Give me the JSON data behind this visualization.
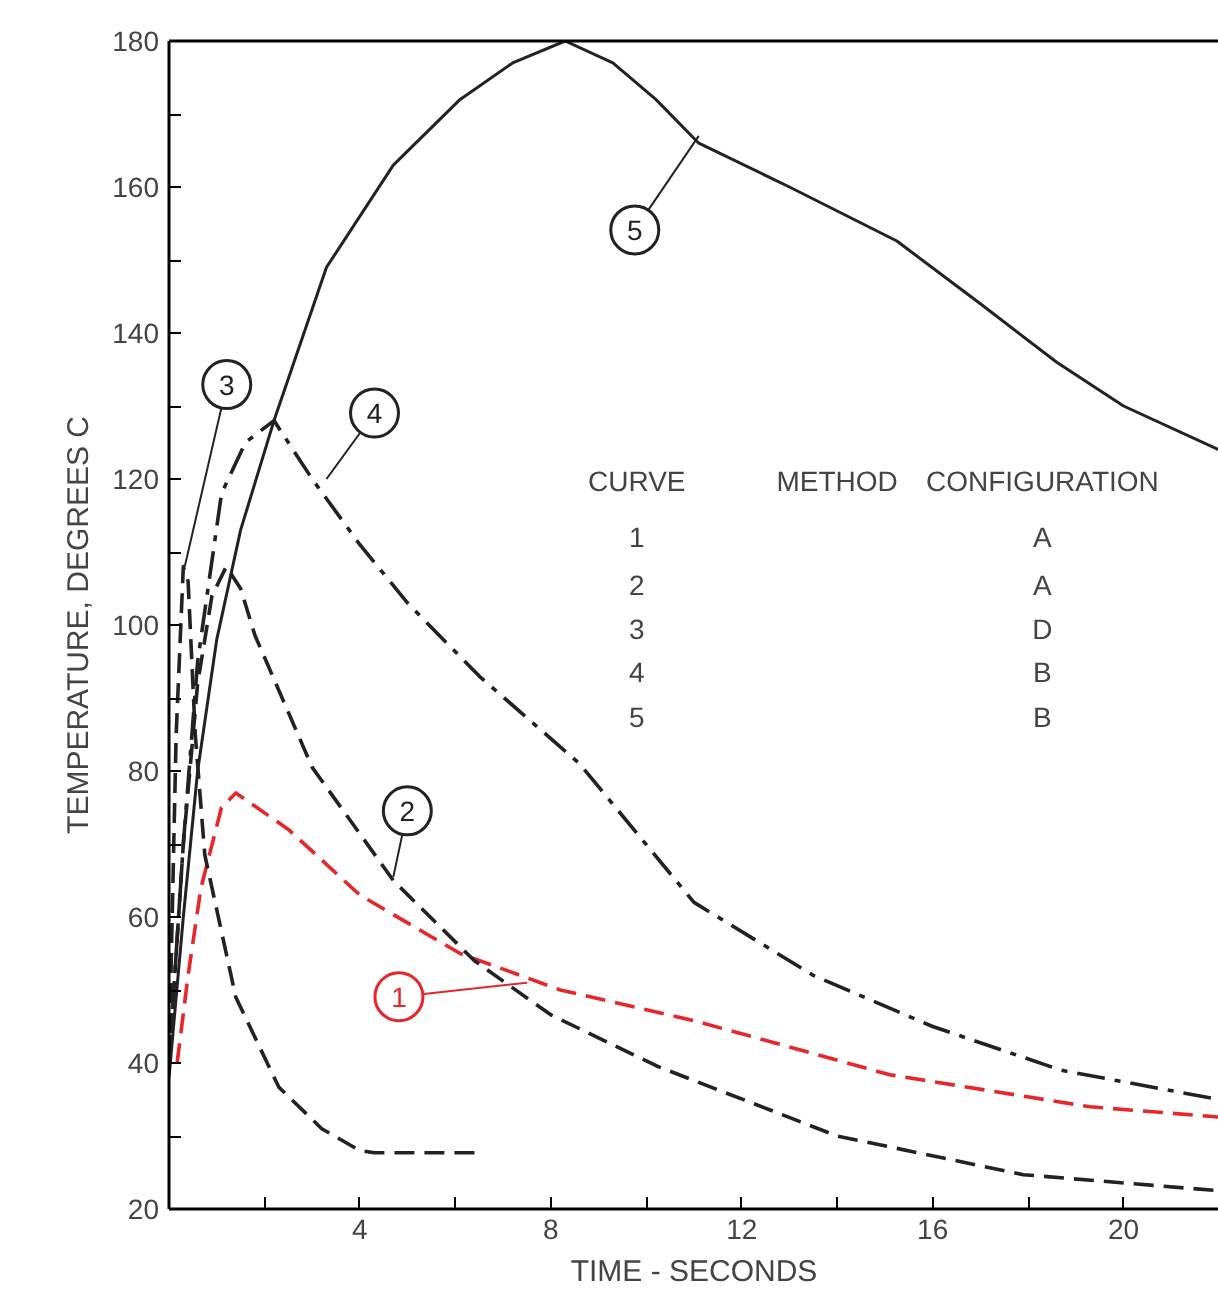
{
  "chart_data": {
    "type": "line",
    "xlabel": "TIME - SECONDS",
    "ylabel": "TEMPERATURE, DEGREES C",
    "xlim": [
      0,
      22
    ],
    "ylim": [
      20,
      180
    ],
    "xticks": [
      {
        "value": 2,
        "label": null
      },
      4,
      {
        "value": 6,
        "label": null
      },
      8,
      {
        "value": 10,
        "label": null
      },
      12,
      {
        "value": 14,
        "label": null
      },
      16,
      {
        "value": 18,
        "label": null
      },
      20
    ],
    "yticks": [
      20,
      {
        "value": 30,
        "label": null
      },
      40,
      {
        "value": 50,
        "label": null
      },
      60,
      {
        "value": 70,
        "label": null
      },
      80,
      {
        "value": 90,
        "label": null
      },
      100,
      {
        "value": 110,
        "label": null
      },
      120,
      {
        "value": 130,
        "label": null
      },
      140,
      {
        "value": 150,
        "label": null
      },
      160,
      {
        "value": 170,
        "label": null
      },
      180
    ],
    "grid": false,
    "series": [
      {
        "color": "#e8262a",
        "line_style": "dashed",
        "x": [
          0.17,
          0.4,
          0.67,
          1.1,
          1.4,
          2.5,
          4,
          6.1,
          8.2,
          11,
          15.1,
          19.3,
          22
        ],
        "values": [
          40,
          52,
          64,
          75,
          77,
          72,
          63,
          55,
          50,
          45.8,
          38.4,
          34,
          32.6
        ]
      },
      {
        "color": "#222222",
        "line_style": "dashed",
        "x": [
          0,
          0.3,
          0.6,
          0.9,
          1.2,
          1.5,
          1.8,
          3.0,
          4.7,
          6.4,
          8,
          10.25,
          14,
          17.9,
          22
        ],
        "values": [
          40,
          70,
          92,
          104,
          108,
          105,
          98.6,
          80.5,
          65,
          54,
          46.6,
          39.5,
          30,
          24.7,
          22.5
        ]
      },
      {
        "color": "#222222",
        "line_style": "dashed",
        "x": [
          0,
          0.15,
          0.3,
          0.4,
          0.55,
          0.75,
          1.4,
          2.3,
          3.2,
          4,
          4.3,
          6.5
        ],
        "values": [
          40,
          85,
          108,
          106,
          85,
          68.5,
          49,
          36.7,
          31,
          28,
          27.7,
          27.7
        ]
      },
      {
        "color": "#222222",
        "line_style": "dashdot",
        "x": [
          0,
          0.3,
          0.6,
          1.1,
          1.6,
          2.2,
          3,
          4,
          5,
          6.5,
          8.6,
          11,
          13.5,
          16,
          18.7,
          22
        ],
        "values": [
          40,
          70,
          95,
          118,
          125,
          128,
          120,
          111,
          103,
          93,
          81,
          62,
          52,
          45,
          39,
          35
        ]
      },
      {
        "color": "#222222",
        "line_style": "solid",
        "x": [
          0,
          0.3,
          0.6,
          1,
          1.5,
          2.2,
          3.3,
          4.7,
          6.1,
          7.2,
          8.3,
          9.3,
          10.2,
          11.1,
          13,
          15.25,
          17,
          18.6,
          20,
          22
        ],
        "values": [
          38,
          60,
          80,
          98,
          113,
          128,
          149,
          163,
          172,
          177,
          180,
          177,
          172,
          166,
          160,
          152.6,
          144,
          136,
          130,
          124
        ]
      }
    ],
    "annotations": [
      {
        "text": "1",
        "x": 7.5,
        "y": 51
      },
      {
        "text": "2",
        "x": 4.7,
        "y": 65.5
      },
      {
        "text": "3",
        "x": 0.33,
        "y": 108
      },
      {
        "text": "4",
        "x": 3.3,
        "y": 120
      },
      {
        "text": "5",
        "x": 11.1,
        "y": 167
      },
      "CURVE",
      "METHOD",
      "CONFIGURATION",
      "1",
      "A",
      "2",
      "A",
      "3",
      "D",
      "4",
      "B",
      "5",
      "B"
    ]
  }
}
